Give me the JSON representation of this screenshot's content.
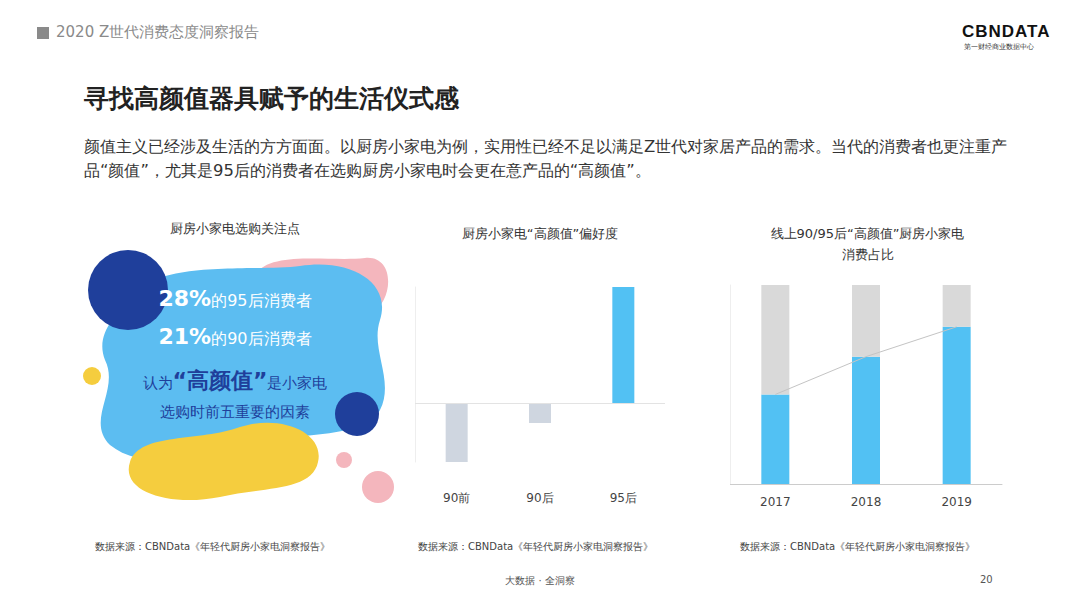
{
  "header": "2020 Z世代消费态度洞察报告",
  "logo": {
    "name": "CBNDATA",
    "subtitle": "第一财经商业数据中心"
  },
  "title": "寻找高颜值器具赋予的生活仪式感",
  "body": "颜值主义已经涉及生活的方方面面。以厨房小家电为例，实用性已经不足以满足Z世代对家居产品的需求。当代的消费者也更注重产品“颜值”，尤其是95后的消费者在选购厨房小家电时会更在意产品的“高颜值”。",
  "infographic": {
    "title": "厨房小家电选购关注点",
    "items": [
      {
        "value": "28%",
        "text": "的95后消费者"
      },
      {
        "value": "21%",
        "text": "的90后消费者"
      }
    ],
    "line1": [
      "认为",
      "“高颜值”",
      "是小家电"
    ],
    "line2": "选购时前五重要的因素",
    "source": "数据来源：CBNData《年轻代厨房小家电洞察报告》"
  },
  "chart_data": [
    {
      "type": "bar",
      "title": "厨房小家电“高颜值”偏好度",
      "categories": [
        "90前",
        "90后",
        "95后"
      ],
      "values": [
        -59,
        -20,
        116
      ],
      "colors": [
        "#cfd6e0",
        "#cfd6e0",
        "#52c1f3"
      ],
      "ylim": [
        -59,
        116
      ],
      "tick_labels": "x",
      "grid": false,
      "data_labels": false,
      "source": "数据来源：CBNData《年轻代厨房小家电洞察报告》"
    },
    {
      "type": "bar",
      "title": "线上90/95后“高颜值”厨房小家电\n消费占比",
      "categories": [
        "2017",
        "2018",
        "2019"
      ],
      "series": [
        {
          "color": "#52c1f3",
          "values": [
            45,
            64,
            79
          ]
        },
        {
          "color": "#d9d9d9",
          "values": [
            55,
            36,
            21
          ]
        },
        {
          "type": "line",
          "color": "#c4c4c4",
          "values": [
            45,
            64,
            79
          ]
        }
      ],
      "stacked": true,
      "ylim": [
        0,
        100
      ],
      "tick_labels": "x",
      "grid": false,
      "data_labels": false,
      "source": "数据来源：CBNData《年轻代厨房小家电洞察报告》"
    }
  ],
  "footer": "大数据 · 全洞察",
  "page": "20"
}
